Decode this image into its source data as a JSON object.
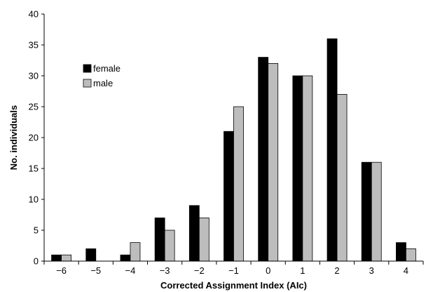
{
  "chart_data": {
    "type": "bar",
    "title": "",
    "xlabel": "Corrected Assignment Index (AIc)",
    "ylabel": "No. individuals",
    "categories": [
      "−6",
      "−5",
      "−4",
      "−3",
      "−2",
      "−1",
      "0",
      "1",
      "2",
      "3",
      "4"
    ],
    "series": [
      {
        "name": "female",
        "color": "#000000",
        "values": [
          1,
          2,
          1,
          7,
          9,
          21,
          33,
          30,
          36,
          16,
          3
        ]
      },
      {
        "name": "male",
        "color": "#bdbdbd",
        "values": [
          1,
          0,
          3,
          5,
          7,
          25,
          32,
          30,
          27,
          16,
          2
        ]
      }
    ],
    "ylim": [
      0,
      40
    ],
    "yticks": [
      0,
      5,
      10,
      15,
      20,
      25,
      30,
      35,
      40
    ],
    "grid": false,
    "legend_position": "upper-left"
  }
}
